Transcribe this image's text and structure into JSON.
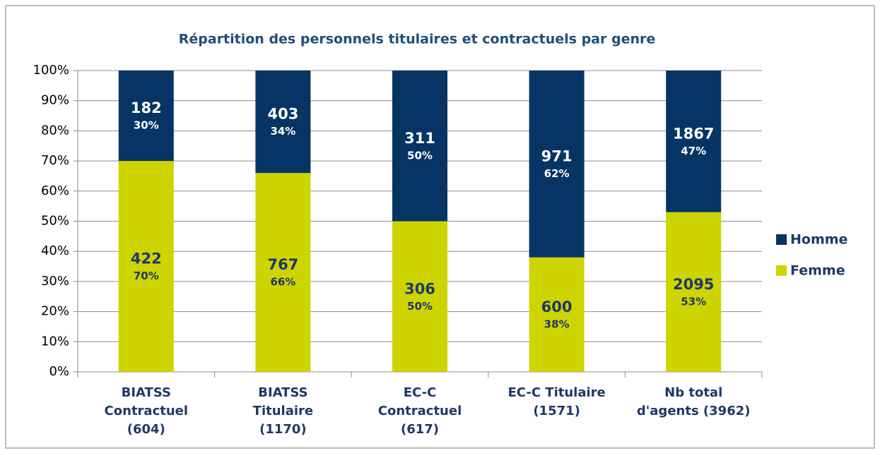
{
  "chart_data": {
    "type": "stacked_bar_100",
    "title": "Répartition des personnels titulaires et contractuels par genre",
    "categories": [
      [
        "BIATSS",
        "Contractuel",
        "(604)"
      ],
      [
        "BIATSS",
        "Titulaire",
        "(1170)"
      ],
      [
        "EC-C",
        "Contractuel",
        "(617)"
      ],
      [
        "EC-C Titulaire",
        "(1571)"
      ],
      [
        "Nb total",
        "d'agents (3962)"
      ]
    ],
    "series": [
      {
        "name": "Femme",
        "color": "#cdd400",
        "values": [
          70,
          66,
          50,
          38,
          53
        ],
        "value_labels": [
          "70%",
          "66%",
          "50%",
          "38%",
          "53%"
        ],
        "counts": [
          422,
          767,
          306,
          600,
          2095
        ]
      },
      {
        "name": "Homme",
        "color": "#063464",
        "values": [
          30,
          34,
          50,
          62,
          47
        ],
        "value_labels": [
          "30%",
          "34%",
          "50%",
          "62%",
          "47%"
        ],
        "counts": [
          182,
          403,
          311,
          971,
          1867
        ]
      }
    ],
    "ylim": [
      0,
      100
    ],
    "yticks": [
      {
        "value": 0,
        "label": "0%"
      },
      {
        "value": 10,
        "label": "10%"
      },
      {
        "value": 20,
        "label": "20%"
      },
      {
        "value": 30,
        "label": "30%"
      },
      {
        "value": 40,
        "label": "40%"
      },
      {
        "value": 50,
        "label": "50%"
      },
      {
        "value": 60,
        "label": "60%"
      },
      {
        "value": 70,
        "label": "70%"
      },
      {
        "value": 80,
        "label": "80%"
      },
      {
        "value": 90,
        "label": "90%"
      },
      {
        "value": 100,
        "label": "100%"
      }
    ],
    "grid": true,
    "legend": "right"
  }
}
